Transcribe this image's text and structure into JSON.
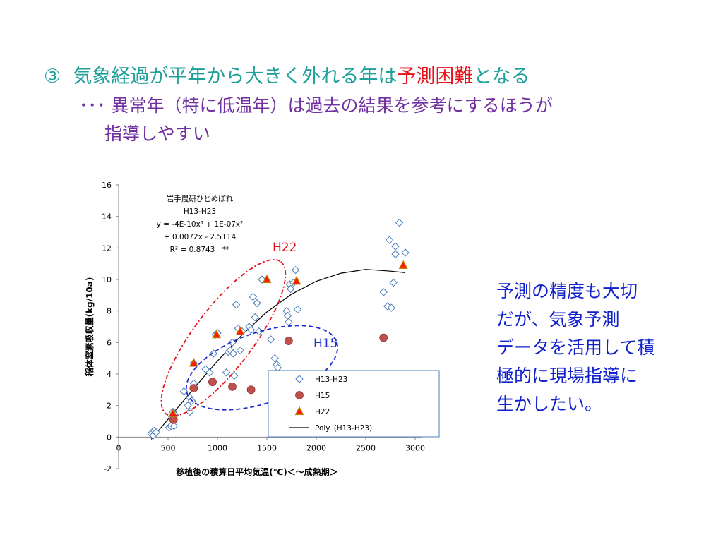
{
  "slide": {
    "title": {
      "marker": "③",
      "before": "気象経過が平年から大きく外れる年は",
      "highlight": "予測困難",
      "after": "となる"
    },
    "subtitle_line1": "･･･ 異常年（特に低温年）は過去の結果を参考にするほうが",
    "subtitle_line2": "指導しやすい",
    "side_note": [
      "予測の精度も大切",
      "だが、気象予測",
      "データを活用して積",
      "極的に現場指導に",
      "生かしたい。"
    ],
    "colors": {
      "title_teal": "#20a09a",
      "title_red": "#e8101a",
      "subtitle_purple": "#7030a0",
      "side_note_blue": "#1122cc",
      "h22_ellipse": "#e8101a",
      "h15_ellipse": "#1a2ed0"
    }
  },
  "chart_data": {
    "type": "scatter",
    "xlabel": "移植後の積算日平均気温(℃)＜～成熟期＞",
    "ylabel": "稲体窒素吸収量(kg/10a)",
    "xlim": [
      0,
      3000
    ],
    "ylim": [
      -2,
      16
    ],
    "x_ticks": [
      "0",
      "500",
      "1000",
      "1500",
      "2000",
      "2500",
      "3000"
    ],
    "y_ticks": [
      "-2",
      "0",
      "2",
      "4",
      "6",
      "8",
      "10",
      "12",
      "14",
      "16"
    ],
    "grid": false,
    "legend_position": "bottom-right",
    "annotation": {
      "line1": "岩手農研ひとめぼれ",
      "line2": "H13-H23",
      "line3": "y = -4E-10x³ + 1E-07x²",
      "line4": "+ 0.0072x - 2.5114",
      "line5": "R² = 0.8743　**"
    },
    "group_labels": {
      "h22": "H22",
      "h15": "H15"
    },
    "series": [
      {
        "name": "H13-H23",
        "marker": "diamond",
        "color": "#4a7ebb",
        "points": [
          [
            330,
            0.2
          ],
          [
            340,
            0.3
          ],
          [
            350,
            0.1
          ],
          [
            360,
            0.4
          ],
          [
            380,
            0.3
          ],
          [
            510,
            0.6
          ],
          [
            530,
            0.7
          ],
          [
            540,
            1.3
          ],
          [
            550,
            1.6
          ],
          [
            560,
            0.7
          ],
          [
            570,
            1.4
          ],
          [
            660,
            2.9
          ],
          [
            700,
            2.0
          ],
          [
            720,
            1.6
          ],
          [
            720,
            2.5
          ],
          [
            740,
            2.3
          ],
          [
            760,
            3.4
          ],
          [
            760,
            4.7
          ],
          [
            880,
            4.3
          ],
          [
            920,
            4.1
          ],
          [
            940,
            3.5
          ],
          [
            960,
            5.3
          ],
          [
            980,
            6.5
          ],
          [
            1000,
            6.6
          ],
          [
            1090,
            4.1
          ],
          [
            1110,
            5.4
          ],
          [
            1130,
            5.5
          ],
          [
            1150,
            6.0
          ],
          [
            1160,
            5.3
          ],
          [
            1170,
            3.9
          ],
          [
            1190,
            8.4
          ],
          [
            1210,
            6.9
          ],
          [
            1230,
            5.5
          ],
          [
            1250,
            6.7
          ],
          [
            1320,
            7.0
          ],
          [
            1340,
            6.8
          ],
          [
            1360,
            8.9
          ],
          [
            1380,
            7.6
          ],
          [
            1400,
            8.5
          ],
          [
            1420,
            6.7
          ],
          [
            1450,
            10.0
          ],
          [
            1540,
            6.2
          ],
          [
            1580,
            5.0
          ],
          [
            1600,
            4.6
          ],
          [
            1610,
            4.4
          ],
          [
            1700,
            8.0
          ],
          [
            1710,
            7.7
          ],
          [
            1720,
            7.3
          ],
          [
            1730,
            9.7
          ],
          [
            1740,
            9.4
          ],
          [
            1770,
            9.8
          ],
          [
            1790,
            10.6
          ],
          [
            1810,
            8.1
          ],
          [
            2680,
            9.2
          ],
          [
            2720,
            8.3
          ],
          [
            2740,
            12.5
          ],
          [
            2760,
            8.2
          ],
          [
            2780,
            9.8
          ],
          [
            2800,
            11.6
          ],
          [
            2800,
            12.1
          ],
          [
            2840,
            13.6
          ],
          [
            2900,
            11.7
          ]
        ]
      },
      {
        "name": "H15",
        "marker": "circle",
        "color": "#c0504d",
        "points": [
          [
            555,
            1.1
          ],
          [
            760,
            3.1
          ],
          [
            950,
            3.5
          ],
          [
            1150,
            3.2
          ],
          [
            1340,
            3.0
          ],
          [
            1720,
            6.1
          ],
          [
            2680,
            6.3
          ]
        ]
      },
      {
        "name": "H22",
        "marker": "triangle",
        "color": "#ff1a00",
        "edge_color": "#c08000",
        "points": [
          [
            550,
            1.5
          ],
          [
            760,
            4.7
          ],
          [
            990,
            6.5
          ],
          [
            1230,
            6.7
          ],
          [
            1500,
            10.0
          ],
          [
            1800,
            9.9
          ],
          [
            2880,
            10.9
          ]
        ]
      },
      {
        "name": "Poly. (H13-H23)",
        "type": "line",
        "color": "#000000",
        "x": [
          330,
          500,
          750,
          1000,
          1250,
          1500,
          1750,
          2000,
          2250,
          2500,
          2750,
          2900
        ],
        "y": [
          -0.14,
          1.13,
          3.01,
          4.83,
          6.5,
          7.94,
          9.07,
          9.89,
          10.4,
          10.64,
          10.53,
          10.43
        ]
      }
    ]
  }
}
